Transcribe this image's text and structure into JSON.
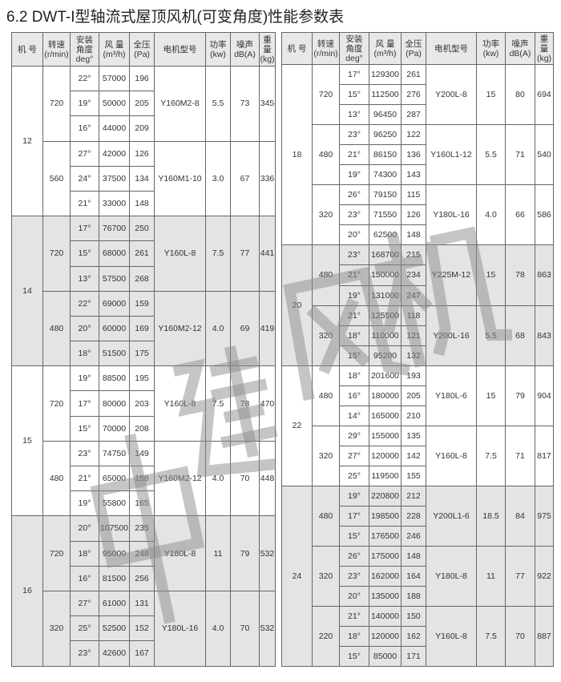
{
  "title": "6.2 DWT-I型轴流式屋顶风机(可变角度)性能参数表",
  "watermark": [
    "中",
    "建",
    "风",
    "机"
  ],
  "headers": [
    "机 号",
    "转速\n(r/min)",
    "安装\n角度\ndeg°",
    "风 量\n(m³/h)",
    "全压\n(Pa)",
    "电机型号",
    "功率\n(kw)",
    "噪声\ndB(A)",
    "重\n量\n(kg)"
  ],
  "colors": {
    "shaded": "#e4e4e4",
    "border": "#666666"
  },
  "left_table": [
    {
      "model": "12",
      "shaded": false,
      "speeds": [
        {
          "rpm": "720",
          "motor": "Y160M2-8",
          "kw": "5.5",
          "db": "73",
          "kg": "345",
          "rows": [
            [
              "22°",
              "57000",
              "196"
            ],
            [
              "19°",
              "50000",
              "205"
            ],
            [
              "16°",
              "44000",
              "209"
            ]
          ]
        },
        {
          "rpm": "560",
          "motor": "Y160M1-10",
          "kw": "3.0",
          "db": "67",
          "kg": "336",
          "rows": [
            [
              "27°",
              "42000",
              "126"
            ],
            [
              "24°",
              "37500",
              "134"
            ],
            [
              "21°",
              "33000",
              "148"
            ]
          ]
        }
      ]
    },
    {
      "model": "14",
      "shaded": true,
      "speeds": [
        {
          "rpm": "720",
          "motor": "Y160L-8",
          "kw": "7.5",
          "db": "77",
          "kg": "441",
          "rows": [
            [
              "17°",
              "76700",
              "250"
            ],
            [
              "15°",
              "68000",
              "261"
            ],
            [
              "13°",
              "57500",
              "268"
            ]
          ]
        },
        {
          "rpm": "480",
          "motor": "Y160M2-12",
          "kw": "4.0",
          "db": "69",
          "kg": "419",
          "rows": [
            [
              "22°",
              "69000",
              "159"
            ],
            [
              "20°",
              "60000",
              "169"
            ],
            [
              "18°",
              "51500",
              "175"
            ]
          ]
        }
      ]
    },
    {
      "model": "15",
      "shaded": false,
      "speeds": [
        {
          "rpm": "720",
          "motor": "Y160L-8",
          "kw": "7.5",
          "db": "78",
          "kg": "470",
          "rows": [
            [
              "19°",
              "88500",
              "195"
            ],
            [
              "17°",
              "80000",
              "203"
            ],
            [
              "15°",
              "70000",
              "208"
            ]
          ]
        },
        {
          "rpm": "480",
          "motor": "Y160M2-12",
          "kw": "4.0",
          "db": "70",
          "kg": "448",
          "rows": [
            [
              "23°",
              "74750",
              "149"
            ],
            [
              "21°",
              "65000",
              "158"
            ],
            [
              "19°",
              "55800",
              "165"
            ]
          ]
        }
      ]
    },
    {
      "model": "16",
      "shaded": true,
      "speeds": [
        {
          "rpm": "720",
          "motor": "Y180L-8",
          "kw": "11",
          "db": "79",
          "kg": "532",
          "rows": [
            [
              "20°",
              "107500",
              "235"
            ],
            [
              "18°",
              "95000",
              "248"
            ],
            [
              "16°",
              "81500",
              "256"
            ]
          ]
        },
        {
          "rpm": "320",
          "motor": "Y180L-16",
          "kw": "4.0",
          "db": "70",
          "kg": "532",
          "rows": [
            [
              "27°",
              "61000",
              "131"
            ],
            [
              "25°",
              "52500",
              "152"
            ],
            [
              "23°",
              "42600",
              "167"
            ]
          ]
        }
      ]
    }
  ],
  "right_table": [
    {
      "model": "18",
      "shaded": false,
      "speeds": [
        {
          "rpm": "720",
          "motor": "Y200L-8",
          "kw": "15",
          "db": "80",
          "kg": "694",
          "rows": [
            [
              "17°",
              "129300",
              "261"
            ],
            [
              "15°",
              "112500",
              "276"
            ],
            [
              "13°",
              "96450",
              "287"
            ]
          ]
        },
        {
          "rpm": "480",
          "motor": "Y160L1-12",
          "kw": "5.5",
          "db": "71",
          "kg": "540",
          "rows": [
            [
              "23°",
              "96250",
              "122"
            ],
            [
              "21°",
              "86150",
              "136"
            ],
            [
              "19°",
              "74300",
              "143"
            ]
          ]
        },
        {
          "rpm": "320",
          "motor": "Y180L-16",
          "kw": "4.0",
          "db": "66",
          "kg": "586",
          "rows": [
            [
              "26°",
              "79150",
              "115"
            ],
            [
              "23°",
              "71550",
              "126"
            ],
            [
              "20°",
              "62500",
              "148"
            ]
          ]
        }
      ]
    },
    {
      "model": "20",
      "shaded": true,
      "speeds": [
        {
          "rpm": "480",
          "motor": "Y225M-12",
          "kw": "15",
          "db": "78",
          "kg": "863",
          "rows": [
            [
              "23°",
              "168700",
              "215"
            ],
            [
              "21°",
              "150000",
              "234"
            ],
            [
              "19°",
              "131000",
              "247"
            ]
          ]
        },
        {
          "rpm": "320",
          "motor": "Y200L-16",
          "kw": "5.5",
          "db": "68",
          "kg": "843",
          "rows": [
            [
              "21°",
              "125500",
              "118"
            ],
            [
              "18°",
              "110000",
              "121"
            ],
            [
              "15°",
              "95200",
              "132"
            ]
          ]
        }
      ]
    },
    {
      "model": "22",
      "shaded": false,
      "speeds": [
        {
          "rpm": "480",
          "motor": "Y180L-6",
          "kw": "15",
          "db": "79",
          "kg": "904",
          "rows": [
            [
              "18°",
              "201600",
              "193"
            ],
            [
              "16°",
              "180000",
              "205"
            ],
            [
              "14°",
              "165000",
              "210"
            ]
          ]
        },
        {
          "rpm": "320",
          "motor": "Y160L-8",
          "kw": "7.5",
          "db": "71",
          "kg": "817",
          "rows": [
            [
              "29°",
              "155000",
              "135"
            ],
            [
              "27°",
              "120000",
              "142"
            ],
            [
              "25°",
              "119500",
              "155"
            ]
          ]
        }
      ]
    },
    {
      "model": "24",
      "shaded": true,
      "speeds": [
        {
          "rpm": "480",
          "motor": "Y200L1-6",
          "kw": "18.5",
          "db": "84",
          "kg": "975",
          "rows": [
            [
              "19°",
              "220800",
              "212"
            ],
            [
              "17°",
              "198500",
              "228"
            ],
            [
              "15°",
              "176500",
              "246"
            ]
          ]
        },
        {
          "rpm": "320",
          "motor": "Y180L-8",
          "kw": "11",
          "db": "77",
          "kg": "922",
          "rows": [
            [
              "26°",
              "175000",
              "148"
            ],
            [
              "23°",
              "162000",
              "164"
            ],
            [
              "20°",
              "135000",
              "188"
            ]
          ]
        },
        {
          "rpm": "220",
          "motor": "Y160L-8",
          "kw": "7.5",
          "db": "70",
          "kg": "887",
          "rows": [
            [
              "21°",
              "140000",
              "150"
            ],
            [
              "18°",
              "120000",
              "162"
            ],
            [
              "15°",
              "85000",
              "171"
            ]
          ]
        }
      ]
    }
  ]
}
